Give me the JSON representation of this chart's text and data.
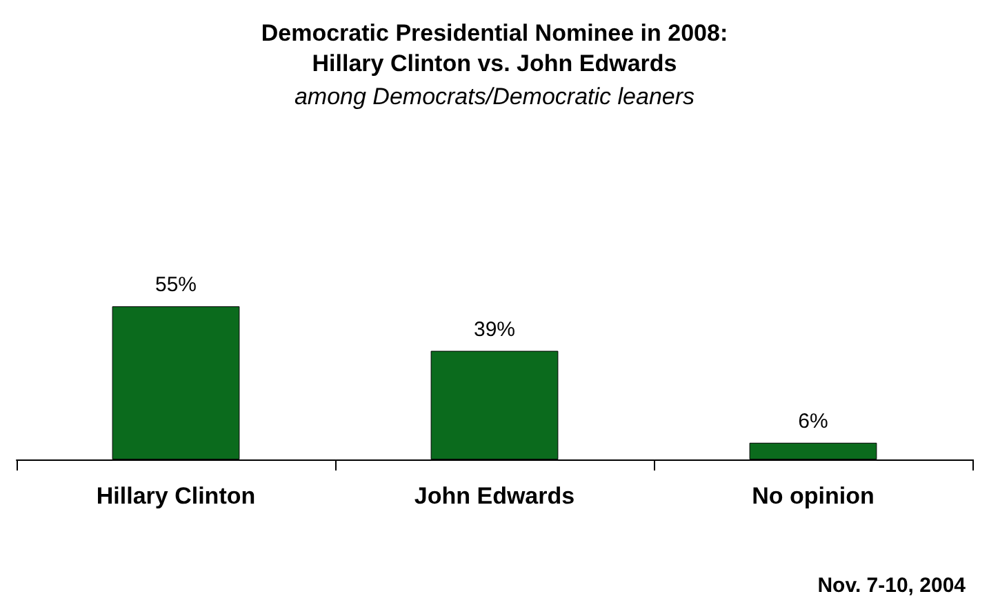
{
  "chart_data": {
    "type": "bar",
    "title": "Democratic Presidential Nominee in 2008:\nHillary Clinton vs. John Edwards",
    "subtitle": "among Democrats/Democratic leaners",
    "categories": [
      "Hillary Clinton",
      "John Edwards",
      "No opinion"
    ],
    "values": [
      55,
      39,
      6
    ],
    "value_labels": [
      "55%",
      "39%",
      "6%"
    ],
    "color": "#0b6b1d",
    "annotations": [
      "Nov. 7-10, 2004"
    ]
  }
}
